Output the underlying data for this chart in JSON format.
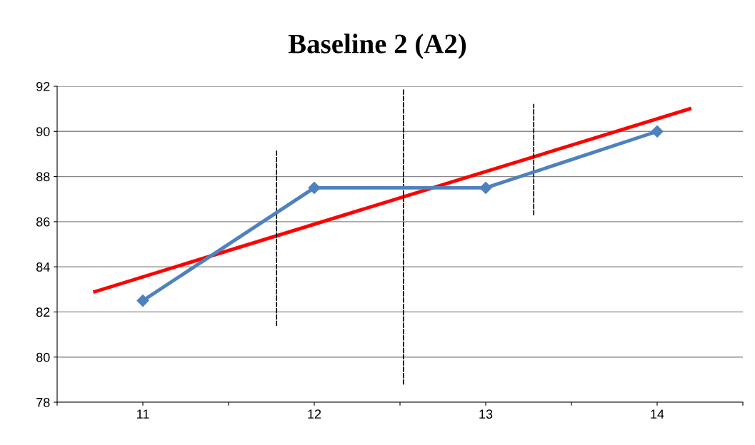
{
  "chart_data": {
    "type": "line",
    "title": "Baseline 2 (A2)",
    "x": [
      11,
      12,
      13,
      14
    ],
    "xlim": [
      10.5,
      14.5
    ],
    "xticks": [
      {
        "value": 10.5,
        "label": null
      },
      11,
      {
        "value": 11.5,
        "label": null
      },
      12,
      {
        "value": 12.5,
        "label": null
      },
      13,
      {
        "value": 13.5,
        "label": null
      },
      14,
      {
        "value": 14.5,
        "label": null
      }
    ],
    "ylim": [
      78,
      92
    ],
    "yticks": [
      78,
      80,
      82,
      84,
      86,
      88,
      90,
      92
    ],
    "grid": "y",
    "legend": false,
    "series": [
      {
        "color": "#4f81bd",
        "values": [
          82.5,
          87.5,
          87.5,
          90
        ],
        "marker": "diamond",
        "line_style": "solid"
      },
      {
        "type": "line",
        "color": "#ff0000",
        "x": [
          10.72,
          14.19
        ],
        "values": [
          82.9,
          91.0
        ],
        "marker": "none",
        "line_style": "solid"
      },
      {
        "type": "line",
        "color": "#000000",
        "x": [
          11.78,
          11.78
        ],
        "values": [
          81.4,
          89.2
        ],
        "marker": "none",
        "line_style": "dashed"
      },
      {
        "type": "line",
        "color": "#000000",
        "x": [
          12.52,
          12.52
        ],
        "values": [
          78.8,
          91.9
        ],
        "marker": "none",
        "line_style": "dashed"
      },
      {
        "type": "line",
        "color": "#000000",
        "x": [
          13.28,
          13.28
        ],
        "values": [
          86.3,
          91.2
        ],
        "marker": "none",
        "line_style": "dashed"
      }
    ]
  }
}
